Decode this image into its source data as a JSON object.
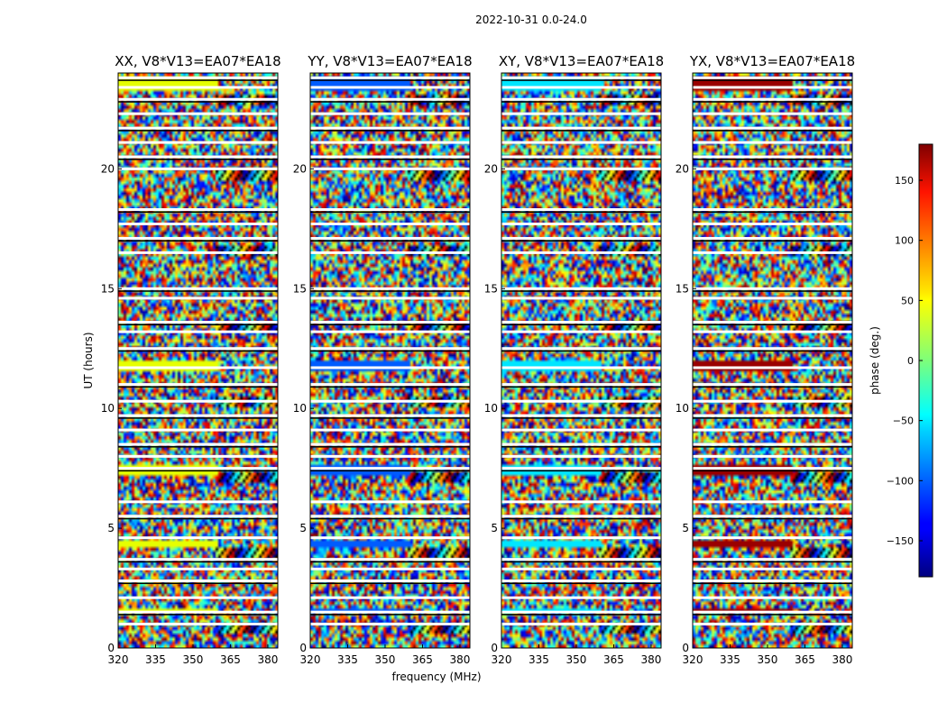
{
  "chart_data": {
    "type": "heatmap",
    "title": "2022-10-31 0.0-24.0",
    "xlabel": "frequency (MHz)",
    "ylabel": "UT (hours)",
    "xlim": [
      320,
      384
    ],
    "ylim": [
      0,
      24
    ],
    "xticks": [
      320,
      335,
      350,
      365,
      380
    ],
    "yticks": [
      0,
      5,
      10,
      15,
      20
    ],
    "colorscale": "jet",
    "panels": [
      {
        "name": "XX",
        "title": "XX, V8*V13=EA07*EA18",
        "coherent_color": "yellow"
      },
      {
        "name": "YY",
        "title": "YY, V8*V13=EA07*EA18",
        "coherent_color": "blue"
      },
      {
        "name": "XY",
        "title": "XY, V8*V13=EA07*EA18",
        "coherent_color": "cyan"
      },
      {
        "name": "YX",
        "title": "YX, V8*V13=EA07*EA18",
        "coherent_color": "darkred"
      }
    ],
    "flagged_hours": [
      23.8,
      23.4,
      22.9,
      22.3,
      21.7,
      21.1,
      20.5,
      20.0,
      18.3,
      17.7,
      17.1,
      16.5,
      15.0,
      14.6,
      13.6,
      13.2,
      12.5,
      11.7,
      11.0,
      10.3,
      9.7,
      9.1,
      8.5,
      8.0,
      7.5,
      6.1,
      5.5,
      4.6,
      3.7,
      3.3,
      2.8,
      2.1,
      1.5,
      1.0
    ],
    "coherent_bands_hours": [
      [
        23.2,
        23.8
      ],
      [
        11.6,
        12.0
      ],
      [
        7.2,
        7.6
      ],
      [
        4.2,
        4.5
      ],
      [
        1.5,
        1.7
      ]
    ],
    "colorbar": {
      "label": "phase (deg.)",
      "range": [
        -180,
        180
      ],
      "ticks": [
        150,
        100,
        50,
        0,
        -50,
        -100,
        -150
      ],
      "tick_labels": [
        "150",
        "100",
        "50",
        "0",
        "−50",
        "−100",
        "−150"
      ]
    }
  }
}
